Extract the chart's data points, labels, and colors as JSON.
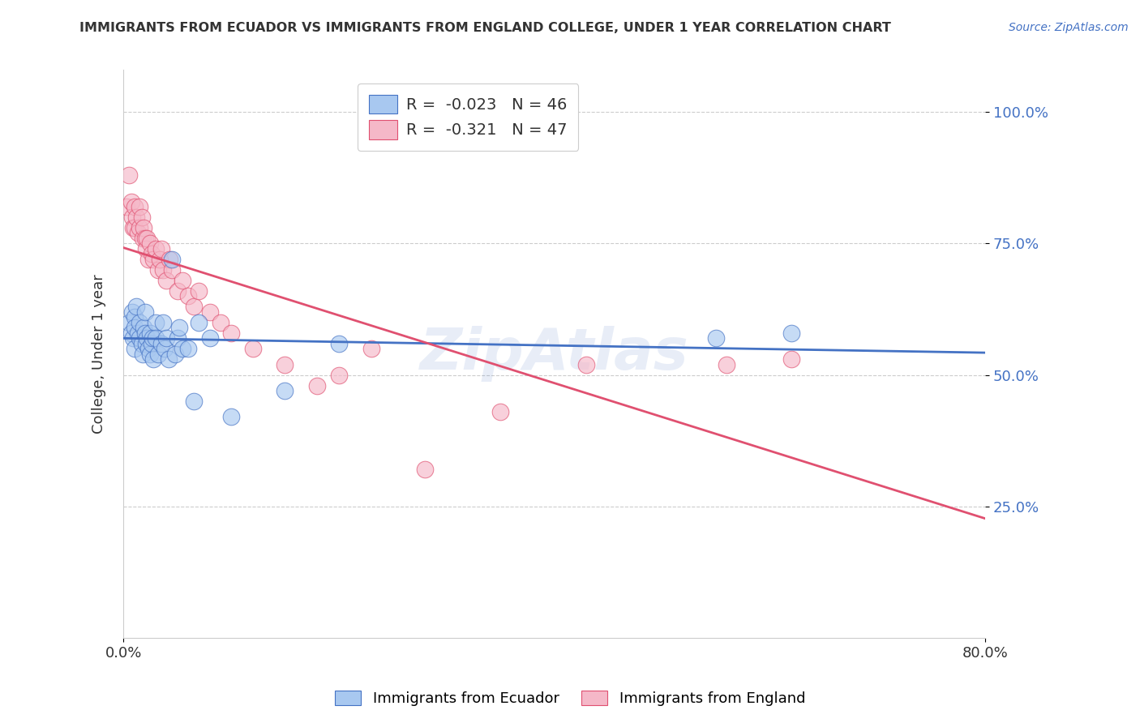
{
  "title": "IMMIGRANTS FROM ECUADOR VS IMMIGRANTS FROM ENGLAND COLLEGE, UNDER 1 YEAR CORRELATION CHART",
  "source": "Source: ZipAtlas.com",
  "ylabel": "College, Under 1 year",
  "legend_label1": "Immigrants from Ecuador",
  "legend_label2": "Immigrants from England",
  "r1": -0.023,
  "n1": 46,
  "r2": -0.321,
  "n2": 47,
  "color_ecuador": "#A8C8F0",
  "color_england": "#F5B8C8",
  "color_ecuador_line": "#4472C4",
  "color_england_line": "#E05070",
  "xlim": [
    0.0,
    0.8
  ],
  "ylim": [
    0.0,
    1.08
  ],
  "yticks": [
    0.25,
    0.5,
    0.75,
    1.0
  ],
  "xticks": [
    0.0,
    0.8
  ],
  "watermark": "ZipAtlas",
  "ecuador_x": [
    0.005,
    0.007,
    0.008,
    0.009,
    0.01,
    0.01,
    0.01,
    0.012,
    0.013,
    0.015,
    0.015,
    0.017,
    0.018,
    0.019,
    0.02,
    0.02,
    0.021,
    0.022,
    0.023,
    0.025,
    0.025,
    0.026,
    0.027,
    0.028,
    0.03,
    0.03,
    0.032,
    0.035,
    0.037,
    0.038,
    0.04,
    0.042,
    0.045,
    0.048,
    0.05,
    0.052,
    0.055,
    0.06,
    0.065,
    0.07,
    0.08,
    0.1,
    0.15,
    0.2,
    0.55,
    0.62
  ],
  "ecuador_y": [
    0.6,
    0.58,
    0.62,
    0.57,
    0.61,
    0.59,
    0.55,
    0.63,
    0.58,
    0.6,
    0.57,
    0.56,
    0.54,
    0.59,
    0.62,
    0.58,
    0.56,
    0.57,
    0.55,
    0.58,
    0.54,
    0.56,
    0.57,
    0.53,
    0.6,
    0.57,
    0.54,
    0.56,
    0.6,
    0.55,
    0.57,
    0.53,
    0.72,
    0.54,
    0.57,
    0.59,
    0.55,
    0.55,
    0.45,
    0.6,
    0.57,
    0.42,
    0.47,
    0.56,
    0.57,
    0.58
  ],
  "england_x": [
    0.003,
    0.005,
    0.007,
    0.008,
    0.009,
    0.01,
    0.01,
    0.012,
    0.013,
    0.015,
    0.015,
    0.017,
    0.018,
    0.019,
    0.02,
    0.021,
    0.022,
    0.023,
    0.025,
    0.026,
    0.028,
    0.03,
    0.032,
    0.034,
    0.035,
    0.037,
    0.04,
    0.043,
    0.045,
    0.05,
    0.055,
    0.06,
    0.065,
    0.07,
    0.08,
    0.09,
    0.1,
    0.12,
    0.15,
    0.18,
    0.2,
    0.23,
    0.28,
    0.35,
    0.43,
    0.56,
    0.62
  ],
  "england_y": [
    0.82,
    0.88,
    0.83,
    0.8,
    0.78,
    0.82,
    0.78,
    0.8,
    0.77,
    0.82,
    0.78,
    0.8,
    0.76,
    0.78,
    0.76,
    0.74,
    0.76,
    0.72,
    0.75,
    0.73,
    0.72,
    0.74,
    0.7,
    0.72,
    0.74,
    0.7,
    0.68,
    0.72,
    0.7,
    0.66,
    0.68,
    0.65,
    0.63,
    0.66,
    0.62,
    0.6,
    0.58,
    0.55,
    0.52,
    0.48,
    0.5,
    0.55,
    0.32,
    0.43,
    0.52,
    0.52,
    0.53
  ],
  "title_color": "#333333",
  "source_color": "#4472C4",
  "ylabel_color": "#333333",
  "tick_color_y": "#4472C4",
  "tick_color_x": "#333333",
  "grid_color": "#CCCCCC",
  "spine_color": "#CCCCCC",
  "legend_r_color": "#E05070",
  "legend_n_color": "#4472C4",
  "watermark_color": "#4472C4",
  "watermark_alpha": 0.12
}
